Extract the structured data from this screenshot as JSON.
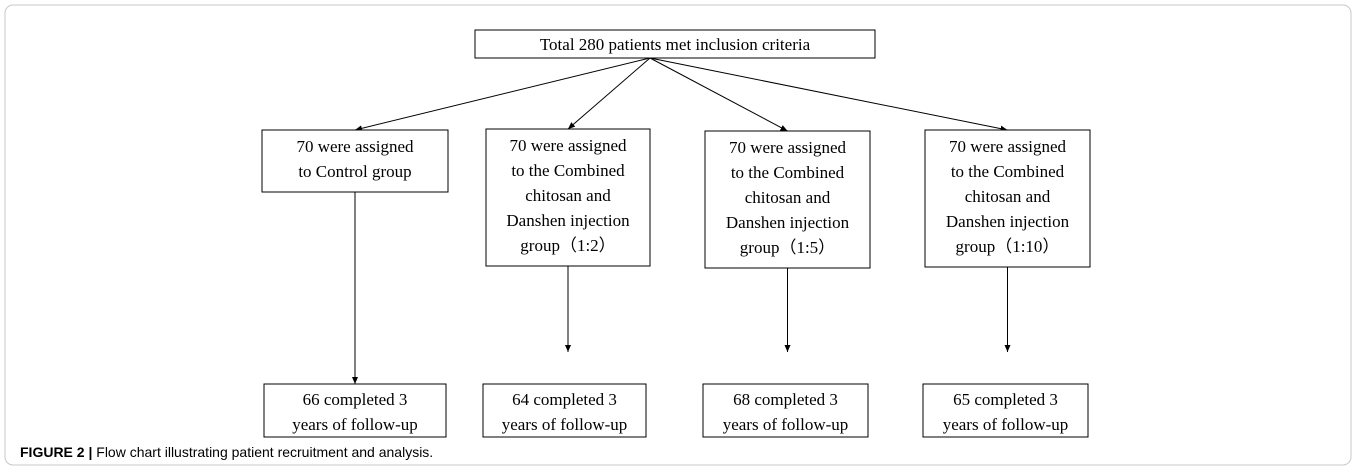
{
  "top": {
    "label": "Total 280 patients met inclusion criteria"
  },
  "groups": [
    {
      "lines": [
        "70 were assigned",
        "to Control group"
      ]
    },
    {
      "lines": [
        "70 were assigned",
        "to the Combined",
        "chitosan and",
        "Danshen injection",
        "group（1:2）"
      ]
    },
    {
      "lines": [
        "70 were assigned",
        "to the Combined",
        "chitosan and",
        "Danshen injection",
        "group（1:5）"
      ]
    },
    {
      "lines": [
        "70 were assigned",
        "to the Combined",
        "chitosan and",
        "Danshen injection",
        "group（1:10）"
      ]
    }
  ],
  "outcomes": [
    {
      "lines": [
        "66 completed 3",
        "years of follow-up"
      ]
    },
    {
      "lines": [
        "64 completed 3",
        "years of follow-up"
      ]
    },
    {
      "lines": [
        "68 completed 3",
        "years of follow-up"
      ]
    },
    {
      "lines": [
        "65 completed 3",
        "years of follow-up"
      ]
    }
  ],
  "caption": {
    "label": "FIGURE 2 |",
    "text": "Flow chart illustrating patient recruitment and analysis."
  }
}
